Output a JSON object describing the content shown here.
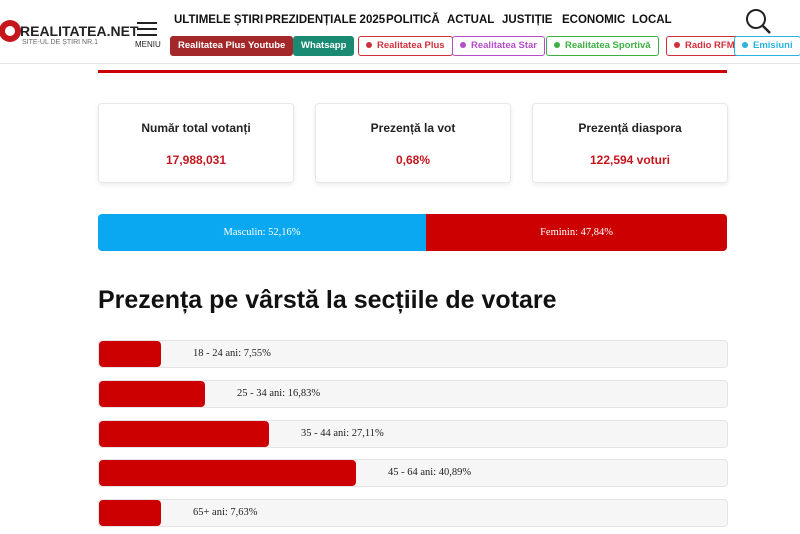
{
  "header": {
    "logo": "REALITATEA.NET",
    "tagline": "SITE-UL DE ȘTIRI NR.1",
    "menu": "MENIU",
    "nav": [
      "ULTIMELE ȘTIRI",
      "PREZIDENȚIALE 2025",
      "POLITICĂ",
      "ACTUAL",
      "JUSTIȚIE",
      "ECONOMIC",
      "LOCAL"
    ],
    "buttons": [
      {
        "label": "Realitatea Plus Youtube",
        "color": "#a3282a",
        "solid": true
      },
      {
        "label": "Whatsapp",
        "color": "#1a8a72",
        "solid": true
      },
      {
        "label": "Realitatea Plus",
        "color": "#d0303c",
        "solid": false
      },
      {
        "label": "Realitatea Star",
        "color": "#b44dc8",
        "solid": false
      },
      {
        "label": "Realitatea Sportivă",
        "color": "#3cb043",
        "solid": false
      },
      {
        "label": "Radio RFM",
        "color": "#d0303c",
        "solid": false
      },
      {
        "label": "Emisiuni",
        "color": "#2bb3e0",
        "solid": false
      }
    ]
  },
  "stats": [
    {
      "label": "Număr total votanți",
      "value": "17,988,031"
    },
    {
      "label": "Prezență la vot",
      "value": "0,68%"
    },
    {
      "label": "Prezență diaspora",
      "value": "122,594 voturi"
    }
  ],
  "gender": [
    {
      "label": "Masculin: 52,16%",
      "value": 52.16,
      "color": "#0aa8f0"
    },
    {
      "label": "Feminin: 47,84%",
      "value": 47.84,
      "color": "#cc0000"
    }
  ],
  "age_title": "Prezența pe vârstă la secțiile de votare",
  "age": [
    {
      "label": "18 - 24 ani: 7,55%",
      "value": 7.55
    },
    {
      "label": "25 - 34 ani: 16,83%",
      "value": 16.83
    },
    {
      "label": "35 - 44 ani: 27,11%",
      "value": 27.11
    },
    {
      "label": "45 - 64 ani: 40,89%",
      "value": 40.89
    },
    {
      "label": "65+ ani: 7,63%",
      "value": 7.63
    }
  ]
}
